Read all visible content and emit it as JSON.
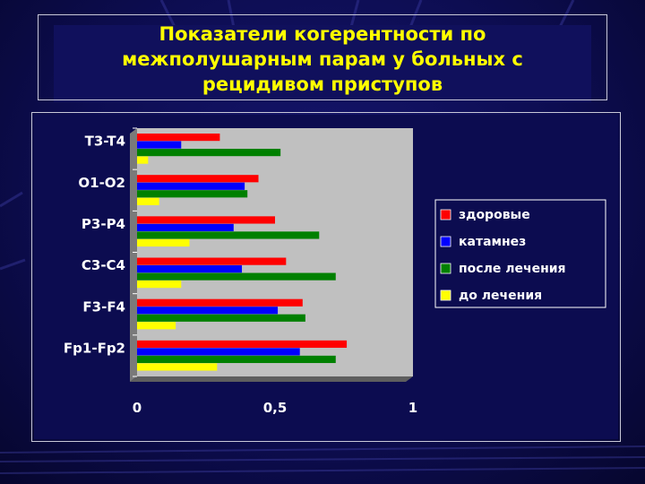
{
  "slide": {
    "title_lines": [
      "Показатели когерентности по",
      "межполушарным  парам у больных с",
      "рецидивом приступов"
    ]
  },
  "colors": {
    "background": "#0d0d52",
    "plot_area": "#c0c0c0",
    "title_text": "#ffff00"
  },
  "chart_data": {
    "type": "bar",
    "orientation": "horizontal",
    "title": "",
    "xlabel": "",
    "ylabel": "",
    "categories": [
      "T3-T4",
      "O1-O2",
      "P3-P4",
      "C3-C4",
      "F3-F4",
      "Fp1-Fp2"
    ],
    "x_ticks": [
      0,
      0.5,
      1
    ],
    "x_tick_labels": [
      "0",
      "0,5",
      "1"
    ],
    "xlim": [
      0,
      1
    ],
    "grid": false,
    "legend_position": "right",
    "series": [
      {
        "name": "здоровые",
        "color": "#ff0000",
        "values": [
          0.3,
          0.44,
          0.5,
          0.54,
          0.6,
          0.76
        ]
      },
      {
        "name": "катамнез",
        "color": "#0000ff",
        "values": [
          0.16,
          0.39,
          0.35,
          0.38,
          0.51,
          0.59
        ]
      },
      {
        "name": "после лечения",
        "color": "#008000",
        "values": [
          0.52,
          0.4,
          0.66,
          0.72,
          0.61,
          0.72
        ]
      },
      {
        "name": "до лечения",
        "color": "#ffff00",
        "values": [
          0.04,
          0.08,
          0.19,
          0.16,
          0.14,
          0.29
        ]
      }
    ]
  }
}
